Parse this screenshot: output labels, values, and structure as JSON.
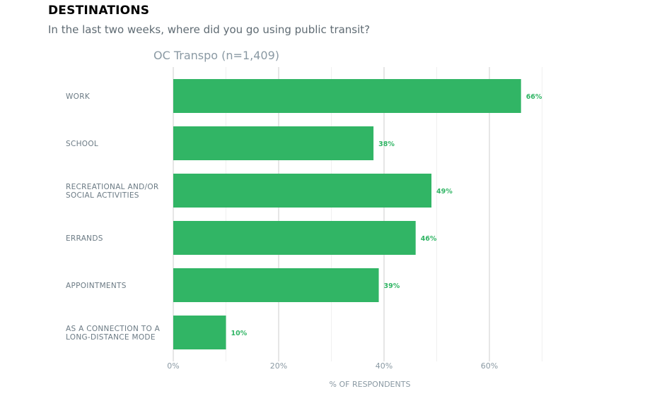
{
  "header": {
    "title": "DESTINATIONS",
    "subtitle": "In the last two weeks, where did you go using public transit?"
  },
  "chart_data": {
    "type": "bar",
    "orientation": "horizontal",
    "title": "OC Transpo (n=1,409)",
    "categories": [
      [
        "WORK"
      ],
      [
        "SCHOOL"
      ],
      [
        "RECREATIONAL AND/OR",
        "SOCIAL ACTIVITIES"
      ],
      [
        "ERRANDS"
      ],
      [
        "APPOINTMENTS"
      ],
      [
        "AS A CONNECTION TO A",
        "LONG-DISTANCE MODE"
      ]
    ],
    "values": [
      66,
      38,
      49,
      46,
      39,
      10
    ],
    "data_labels": [
      "66%",
      "38%",
      "49%",
      "46%",
      "39%",
      "10%"
    ],
    "xlabel": "% OF RESPONDENTS",
    "xlim": [
      0,
      70
    ],
    "xticks": [
      0,
      20,
      40,
      60
    ],
    "xtick_labels": [
      "0%",
      "20%",
      "40%",
      "60%"
    ],
    "minor_gridlines": [
      10,
      30,
      50,
      70
    ],
    "grid": true,
    "bar_color": "#31b565",
    "label_color": "#31b565"
  }
}
